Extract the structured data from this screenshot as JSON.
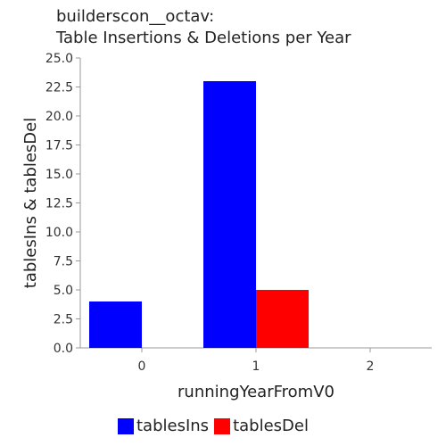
{
  "chart_data": {
    "type": "bar",
    "title_line1": "builderscon__octav:",
    "title_line2": "Table Insertions & Deletions per Year",
    "xlabel": "runningYearFromV0",
    "ylabel": "tablesIns & tablesDel",
    "categories": [
      "0",
      "1",
      "2"
    ],
    "ylim": [
      0,
      25
    ],
    "yticks": [
      "0.0",
      "2.5",
      "5.0",
      "7.5",
      "10.0",
      "12.5",
      "15.0",
      "17.5",
      "20.0",
      "22.5",
      "25.0"
    ],
    "series": [
      {
        "name": "tablesIns",
        "color": "#0000ff",
        "values": [
          4,
          23,
          0
        ]
      },
      {
        "name": "tablesDel",
        "color": "#ff0000",
        "values": [
          0,
          5,
          0
        ]
      }
    ],
    "legend_position": "bottom"
  }
}
